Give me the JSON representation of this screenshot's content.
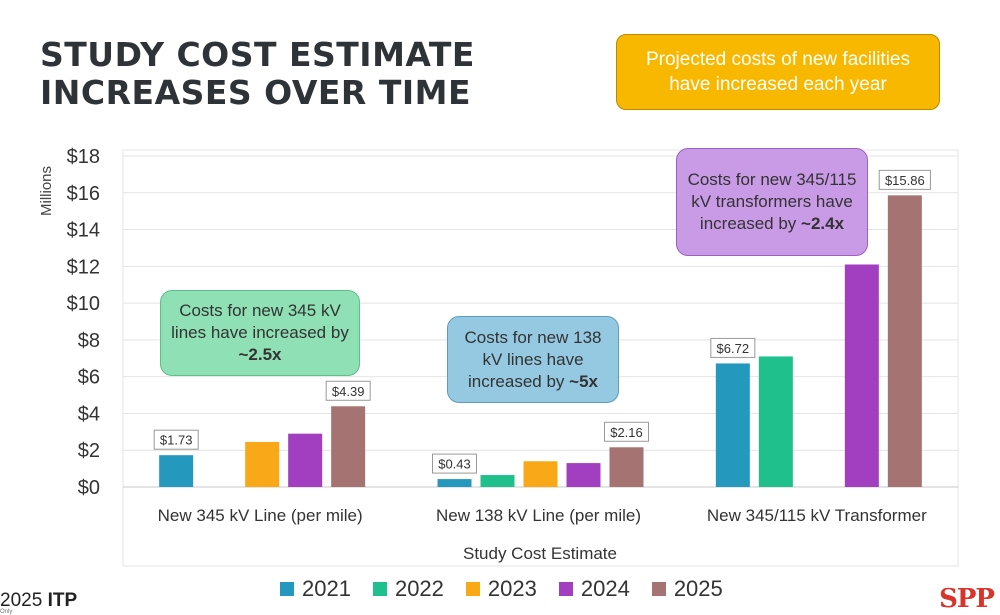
{
  "title": {
    "line1": "STUDY COST ESTIMATE",
    "line2": "INCREASES OVER TIME"
  },
  "callout": {
    "line1": "Projected costs of new facilities",
    "line2": "have increased each year"
  },
  "chart_data": {
    "type": "bar",
    "categories": [
      "New 345 kV Line (per mile)",
      "New 138 kV Line (per mile)",
      "New 345/115 kV Transformer"
    ],
    "series": [
      {
        "name": "2021",
        "color": "#2599bd",
        "values": [
          1.73,
          0.43,
          6.72
        ]
      },
      {
        "name": "2022",
        "color": "#1fc08c",
        "values": [
          null,
          0.65,
          7.1
        ]
      },
      {
        "name": "2023",
        "color": "#f9a818",
        "values": [
          2.45,
          1.4,
          null
        ]
      },
      {
        "name": "2024",
        "color": "#a23fc0",
        "values": [
          2.9,
          1.3,
          12.1
        ]
      },
      {
        "name": "2025",
        "color": "#a57372",
        "values": [
          4.39,
          2.16,
          15.86
        ]
      }
    ],
    "data_labels": [
      {
        "series": 0,
        "category": 0,
        "text": "$1.73"
      },
      {
        "series": 4,
        "category": 0,
        "text": "$4.39"
      },
      {
        "series": 0,
        "category": 1,
        "text": "$0.43"
      },
      {
        "series": 4,
        "category": 1,
        "text": "$2.16"
      },
      {
        "series": 0,
        "category": 2,
        "text": "$6.72"
      },
      {
        "series": 4,
        "category": 2,
        "text": "$15.86"
      }
    ],
    "ylim": [
      0,
      18
    ],
    "ytick_values": [
      0,
      2,
      4,
      6,
      8,
      10,
      12,
      14,
      16,
      18
    ],
    "ytick_labels": [
      "$0",
      "$2",
      "$4",
      "$6",
      "$8",
      "$10",
      "$12",
      "$14",
      "$16",
      "$18"
    ],
    "ylabel": "Millions",
    "xlabel": "Study Cost Estimate",
    "legend_position": "bottom"
  },
  "annotations": {
    "a": {
      "pre": "Costs for new 345 kV lines have increased by ",
      "bold": "~2.5x"
    },
    "b": {
      "pre": "Costs for new 138 kV lines have increased by ",
      "bold": "~5x"
    },
    "c": {
      "pre": "Costs for new 345/115 kV transformers have increased by ",
      "bold": "~2.4x"
    }
  },
  "footer": {
    "year": "2025",
    "itp": "ITP",
    "sub": "Only",
    "logo": "SPP"
  }
}
